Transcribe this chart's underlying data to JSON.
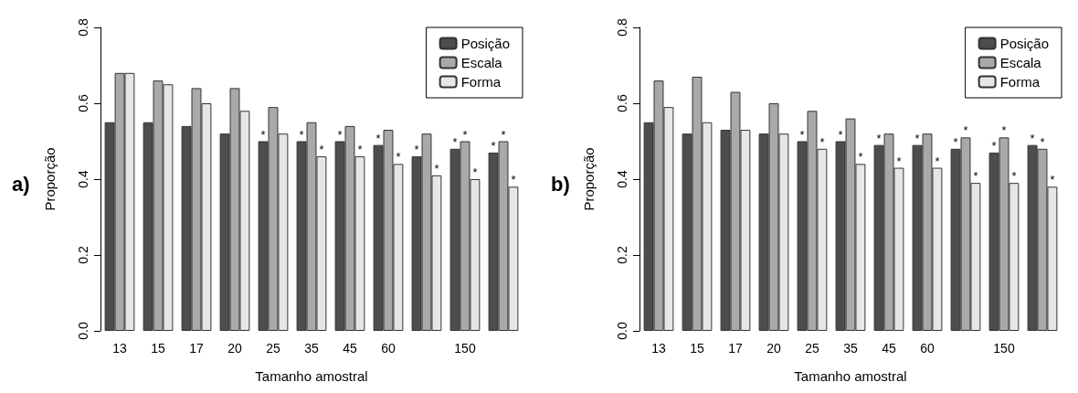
{
  "chart_data": [
    {
      "type": "bar",
      "title": "a)",
      "xlabel": "Tamanho amostral",
      "ylabel": "Proporção",
      "categories": [
        "13",
        "15",
        "17",
        "20",
        "25",
        "35",
        "45",
        "60",
        null,
        "150",
        null
      ],
      "series": [
        {
          "name": "Posição",
          "color": "#4d4d4d",
          "values": [
            0.55,
            0.55,
            0.54,
            0.52,
            0.5,
            0.5,
            0.5,
            0.49,
            0.46,
            0.48,
            0.47
          ],
          "value_labels": [
            null,
            null,
            null,
            null,
            "*",
            "*",
            "*",
            "*",
            "*",
            "*",
            "*"
          ]
        },
        {
          "name": "Escala",
          "color": "#a9a9a9",
          "values": [
            0.68,
            0.66,
            0.64,
            0.64,
            0.59,
            0.55,
            0.54,
            0.53,
            0.52,
            0.5,
            0.5
          ],
          "value_labels": [
            null,
            null,
            null,
            null,
            null,
            null,
            null,
            null,
            null,
            "*",
            "*"
          ]
        },
        {
          "name": "Forma",
          "color": "#e6e6e6",
          "values": [
            0.68,
            0.65,
            0.6,
            0.58,
            0.52,
            0.46,
            0.46,
            0.44,
            0.41,
            0.4,
            0.38
          ],
          "value_labels": [
            null,
            null,
            null,
            null,
            null,
            "*",
            "*",
            "*",
            "*",
            "*",
            "*"
          ]
        }
      ],
      "ylim": [
        0,
        0.8
      ],
      "yticks": [
        {
          "value": 0,
          "label": "0.0"
        },
        0.2,
        0.4,
        0.6,
        0.8
      ],
      "grid": false,
      "legend": "top right"
    },
    {
      "type": "bar",
      "title": "b)",
      "xlabel": "Tamanho amostral",
      "ylabel": "Proporção",
      "categories": [
        "13",
        "15",
        "17",
        "20",
        "25",
        "35",
        "45",
        "60",
        null,
        "150",
        null
      ],
      "series": [
        {
          "name": "Posição",
          "color": "#4d4d4d",
          "values": [
            0.55,
            0.52,
            0.53,
            0.52,
            0.5,
            0.5,
            0.49,
            0.49,
            0.48,
            0.47,
            0.49
          ],
          "value_labels": [
            null,
            null,
            null,
            null,
            "*",
            "*",
            "*",
            "*",
            "*",
            "*",
            "*"
          ]
        },
        {
          "name": "Escala",
          "color": "#a9a9a9",
          "values": [
            0.66,
            0.67,
            0.63,
            0.6,
            0.58,
            0.56,
            0.52,
            0.52,
            0.51,
            0.51,
            0.48
          ],
          "value_labels": [
            null,
            null,
            null,
            null,
            null,
            null,
            null,
            null,
            "*",
            "*",
            "*"
          ]
        },
        {
          "name": "Forma",
          "color": "#e6e6e6",
          "values": [
            0.59,
            0.55,
            0.53,
            0.52,
            0.48,
            0.44,
            0.43,
            0.43,
            0.39,
            0.39,
            0.38
          ],
          "value_labels": [
            null,
            null,
            null,
            null,
            "*",
            "*",
            "*",
            "*",
            "*",
            "*",
            "*"
          ]
        }
      ],
      "ylim": [
        0,
        0.8
      ],
      "yticks": [
        {
          "value": 0,
          "label": "0.0"
        },
        0.2,
        0.4,
        0.6,
        0.8
      ],
      "grid": false,
      "legend": "top right"
    }
  ]
}
